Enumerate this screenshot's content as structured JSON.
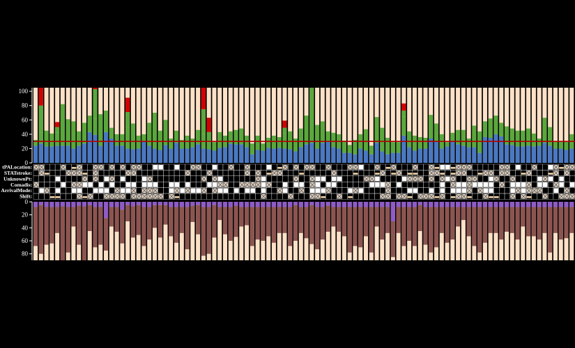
{
  "colors": {
    "background": "#000000",
    "column_fill": "#fde1c7",
    "blue": "#4a78c2",
    "green": "#5aa83c",
    "red": "#d40000",
    "threshold": "#b30000",
    "brown": "#8c5450",
    "purple": "#8e5bc8",
    "grid": "#000000",
    "cell_white": "#ffffff",
    "cell_cross": "#e6d5c3",
    "cell_tan": "#f0d2a8"
  },
  "chart_data": [
    {
      "type": "bar",
      "title": "",
      "xlabel": "",
      "ylabel": "",
      "ylim": [
        0,
        105
      ],
      "yticks": [
        "0",
        "20",
        "40",
        "60",
        "80",
        "100"
      ],
      "threshold": 30,
      "n_columns": 100,
      "series": [
        {
          "values": [
            24,
            27,
            23,
            23,
            24,
            24,
            24,
            20,
            24,
            27,
            43,
            39,
            24,
            43,
            34,
            24,
            24,
            20,
            19,
            20,
            30,
            24,
            20,
            18,
            25,
            20,
            28,
            20,
            20,
            22,
            26,
            20,
            19,
            17,
            21,
            22,
            27,
            26,
            26,
            22,
            12,
            18,
            17,
            21,
            20,
            21,
            20,
            19,
            16,
            22,
            26,
            28,
            20,
            28,
            30,
            22,
            20,
            14,
            14,
            12,
            20,
            17,
            12,
            28,
            16,
            12,
            14,
            14,
            38,
            22,
            17,
            20,
            20,
            34,
            30,
            20,
            23,
            30,
            26,
            24,
            22,
            22,
            14,
            36,
            35,
            40,
            37,
            26,
            25,
            23,
            23,
            24,
            23,
            24,
            28,
            24,
            20,
            20,
            18,
            20
          ]
        },
        {
          "values": [
            8,
            15,
            22,
            18,
            18,
            58,
            37,
            38,
            20,
            29,
            23,
            23,
            44,
            30,
            15,
            16,
            16,
            30,
            36,
            18,
            10,
            32,
            50,
            27,
            35,
            14,
            17,
            12,
            18,
            12,
            20,
            20,
            10,
            12,
            22,
            16,
            17,
            20,
            22,
            16,
            15,
            20,
            10,
            14,
            18,
            15,
            21,
            25,
            18,
            26,
            40,
            90,
            33,
            30,
            14,
            20,
            20,
            17,
            11,
            20,
            20,
            30,
            12,
            36,
            33,
            23,
            15,
            15,
            27,
            22,
            21,
            16,
            15,
            33,
            25,
            20,
            6,
            12,
            20,
            22,
            12,
            30,
            30,
            22,
            27,
            26,
            19,
            25,
            23,
            22,
            22,
            24,
            18,
            10,
            35,
            26,
            10,
            10,
            12,
            20
          ]
        },
        {
          "values": [
            0,
            38,
            0,
            0,
            8,
            0,
            0,
            0,
            0,
            0,
            0,
            41,
            0,
            0,
            0,
            0,
            0,
            21,
            0,
            0,
            0,
            0,
            0,
            0,
            0,
            0,
            0,
            0,
            0,
            0,
            0,
            35,
            14,
            0,
            0,
            0,
            0,
            0,
            0,
            0,
            0,
            0,
            0,
            0,
            0,
            0,
            8,
            0,
            0,
            0,
            0,
            0,
            0,
            0,
            0,
            0,
            0,
            0,
            0,
            0,
            0,
            0,
            0,
            0,
            0,
            0,
            0,
            0,
            8,
            0,
            0,
            0,
            0,
            0,
            0,
            0,
            0,
            0,
            0,
            0,
            0,
            0,
            0,
            0,
            0,
            0,
            0,
            0,
            0,
            0,
            0,
            0,
            0,
            0,
            0,
            0,
            0,
            0,
            0,
            0
          ]
        }
      ],
      "red_values": [
        0,
        30,
        0,
        0,
        7,
        0,
        0,
        0,
        0,
        0,
        0,
        30,
        0,
        0,
        0,
        0,
        0,
        20,
        0,
        0,
        0,
        0,
        0,
        0,
        0,
        0,
        0,
        0,
        0,
        0,
        0,
        30,
        20,
        0,
        0,
        0,
        0,
        0,
        0,
        0,
        0,
        0,
        0,
        0,
        0,
        0,
        10,
        0,
        0,
        0,
        0,
        0,
        0,
        0,
        0,
        0,
        0,
        0,
        0,
        0,
        0,
        0,
        0,
        0,
        0,
        0,
        0,
        0,
        10,
        0,
        0,
        0,
        0,
        0,
        0,
        0,
        0,
        0,
        0,
        0,
        0,
        0,
        0,
        0,
        0,
        0,
        0,
        0,
        0,
        0,
        0,
        0,
        0,
        0,
        0,
        0,
        0,
        0,
        0,
        0
      ]
    },
    {
      "type": "heatmap",
      "rows": [
        "tPALocation:",
        "STATstroke:",
        "UnknownPt:",
        "Comadis:",
        "ArrivalMode:",
        "Shift:"
      ],
      "cell_codes": [
        "0",
        "1",
        "2",
        "3"
      ]
    },
    {
      "type": "bar",
      "orientation": "downward",
      "title": "",
      "xlabel": "",
      "ylabel": "",
      "ylim": [
        0,
        90
      ],
      "yticks": [
        "0",
        "20",
        "40",
        "60",
        "80"
      ],
      "series": [
        {
          "values": [
            8,
            5,
            8,
            8,
            8,
            7,
            8,
            8,
            6,
            7,
            5,
            8,
            8,
            25,
            8,
            8,
            12,
            5,
            7,
            5,
            8,
            8,
            5,
            5,
            5,
            8,
            8,
            8,
            8,
            6,
            5,
            8,
            8,
            5,
            8,
            8,
            8,
            6,
            8,
            8,
            8,
            8,
            8,
            8,
            8,
            8,
            8,
            8,
            5,
            8,
            8,
            5,
            8,
            8,
            6,
            8,
            8,
            8,
            8,
            8,
            8,
            8,
            8,
            8,
            8,
            8,
            30,
            8,
            8,
            8,
            8,
            5,
            8,
            8,
            8,
            8,
            8,
            8,
            8,
            8,
            8,
            8,
            8,
            8,
            8,
            8,
            8,
            8,
            8,
            8,
            8,
            8,
            8,
            8,
            8,
            8,
            8,
            8,
            8,
            8
          ]
        },
        {
          "values": [
            60,
            75,
            58,
            56,
            40,
            85,
            70,
            30,
            60,
            85,
            40,
            62,
            58,
            50,
            30,
            38,
            52,
            25,
            48,
            46,
            60,
            50,
            35,
            50,
            30,
            45,
            55,
            40,
            65,
            25,
            45,
            75,
            72,
            50,
            20,
            42,
            52,
            48,
            30,
            28,
            60,
            50,
            52,
            45,
            55,
            40,
            40,
            60,
            55,
            40,
            48,
            60,
            65,
            50,
            40,
            30,
            38,
            45,
            70,
            60,
            62,
            45,
            70,
            30,
            50,
            40,
            55,
            40,
            60,
            52,
            60,
            40,
            58,
            70,
            62,
            40,
            55,
            50,
            30,
            20,
            45,
            60,
            70,
            55,
            40,
            40,
            50,
            38,
            40,
            50,
            30,
            45,
            45,
            50,
            40,
            70,
            40,
            50,
            48,
            40
          ]
        }
      ]
    }
  ]
}
